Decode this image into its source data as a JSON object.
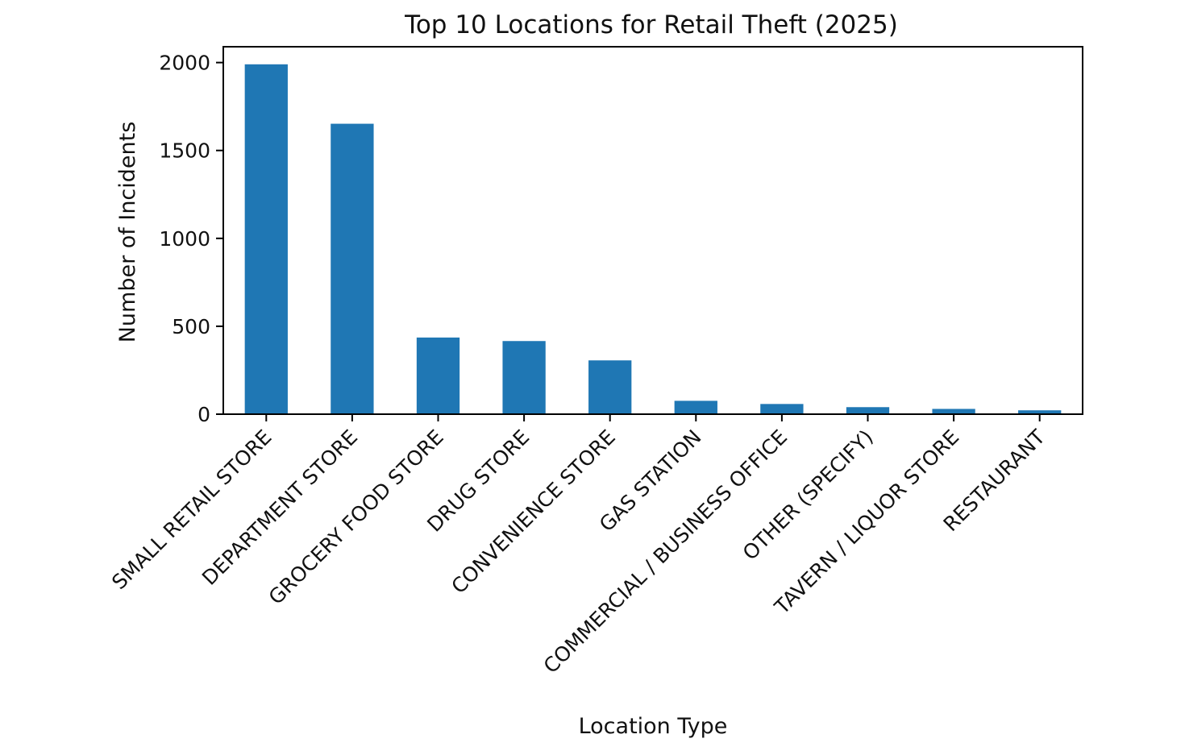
{
  "chart_data": {
    "type": "bar",
    "title": "Top 10 Locations for Retail Theft (2025)",
    "xlabel": "Location Type",
    "ylabel": "Number of Incidents",
    "categories": [
      "SMALL RETAIL STORE",
      "DEPARTMENT STORE",
      "GROCERY FOOD STORE",
      "DRUG STORE",
      "CONVENIENCE STORE",
      "GAS STATION",
      "COMMERCIAL / BUSINESS OFFICE",
      "OTHER (SPECIFY)",
      "TAVERN / LIQUOR STORE",
      "RESTAURANT"
    ],
    "values": [
      1990,
      1652,
      436,
      416,
      306,
      76,
      58,
      40,
      30,
      22
    ],
    "ylim": [
      0,
      2090
    ],
    "yticks": [
      0,
      500,
      1000,
      1500,
      2000
    ],
    "grid": false,
    "bar_color": "#1f77b4"
  }
}
